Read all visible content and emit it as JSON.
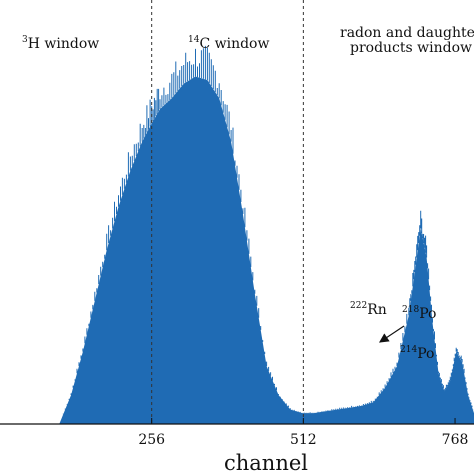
{
  "chart_data": {
    "type": "area",
    "xlabel": "channel",
    "ylabel": "",
    "title": "",
    "x_ticks": [
      256,
      512,
      768
    ],
    "xlim": [
      0,
      800
    ],
    "ylim": [
      0,
      1
    ],
    "window_boundaries": [
      256,
      512
    ],
    "windows": [
      {
        "iso": "3",
        "label": "H window"
      },
      {
        "iso": "14",
        "label": "C window"
      },
      {
        "label_line1": "radon and daughte",
        "label_line2": "products window"
      }
    ],
    "annotations": [
      {
        "iso": "222",
        "label": "Rn",
        "peak_channel": 735
      },
      {
        "iso": "218",
        "label": "Po",
        "peak_channel": 755
      },
      {
        "iso": "214",
        "label": "Po",
        "peak_channel": 805
      }
    ],
    "series": [
      {
        "x": [
          0,
          100,
          120,
          140,
          160,
          180,
          200,
          220,
          240,
          256,
          270,
          290,
          310,
          330,
          350,
          370,
          390,
          410,
          430,
          450,
          470,
          490,
          510,
          530,
          550,
          570,
          590,
          610,
          630,
          650,
          670,
          690,
          700,
          710,
          720,
          730,
          740,
          750,
          760,
          770,
          780,
          790,
          800
        ],
        "y": [
          0.0,
          0.0,
          0.08,
          0.2,
          0.34,
          0.48,
          0.6,
          0.7,
          0.78,
          0.83,
          0.87,
          0.9,
          0.94,
          0.96,
          0.95,
          0.9,
          0.78,
          0.58,
          0.36,
          0.16,
          0.08,
          0.04,
          0.03,
          0.03,
          0.035,
          0.04,
          0.045,
          0.05,
          0.06,
          0.1,
          0.16,
          0.3,
          0.42,
          0.54,
          0.46,
          0.28,
          0.14,
          0.09,
          0.12,
          0.2,
          0.17,
          0.08,
          0.03
        ],
        "color": "#1f6bb4"
      }
    ]
  }
}
